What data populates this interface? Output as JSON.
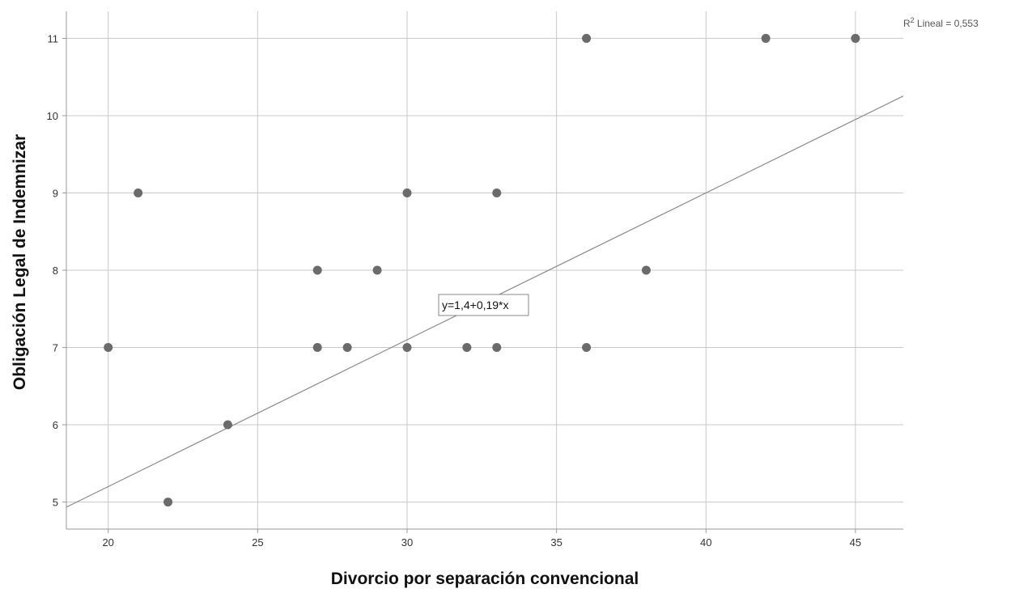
{
  "chart_data": {
    "type": "scatter",
    "xlabel": "Divorcio por separación convencional",
    "ylabel": "Obligación Legal de Indemnizar",
    "xlim": [
      18.6,
      46.6
    ],
    "ylim": [
      4.65,
      11.35
    ],
    "x_ticks": [
      20,
      25,
      30,
      35,
      40,
      45
    ],
    "y_ticks": [
      5,
      6,
      7,
      8,
      9,
      10,
      11
    ],
    "grid": true,
    "points": [
      {
        "x": 20,
        "y": 7
      },
      {
        "x": 21,
        "y": 9
      },
      {
        "x": 22,
        "y": 5
      },
      {
        "x": 24,
        "y": 6
      },
      {
        "x": 27,
        "y": 7
      },
      {
        "x": 27,
        "y": 8
      },
      {
        "x": 28,
        "y": 7
      },
      {
        "x": 29,
        "y": 8
      },
      {
        "x": 30,
        "y": 7
      },
      {
        "x": 30,
        "y": 9
      },
      {
        "x": 32,
        "y": 7
      },
      {
        "x": 33,
        "y": 7
      },
      {
        "x": 33,
        "y": 9
      },
      {
        "x": 36,
        "y": 7
      },
      {
        "x": 36,
        "y": 11
      },
      {
        "x": 38,
        "y": 8
      },
      {
        "x": 42,
        "y": 11
      },
      {
        "x": 45,
        "y": 11
      }
    ],
    "fit_line": {
      "intercept": 1.4,
      "slope": 0.19
    },
    "equation_label": "y=1,4+0,19*x",
    "r2_prefix": "R",
    "r2_superscript": "2",
    "r2_text": " Lineal = 0,553",
    "colors": {
      "points": "#6b6b6b",
      "grid": "#c8c8c8",
      "fit_line": "#8a8a8a",
      "axis": "#999999"
    }
  }
}
